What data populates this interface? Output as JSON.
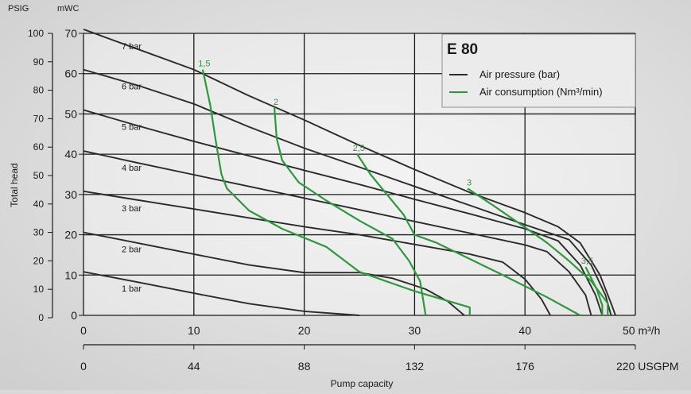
{
  "chart_data": {
    "type": "line",
    "title": "E 80",
    "legend": {
      "placement": "top-right",
      "items": [
        {
          "label": "Air pressure (bar)",
          "color": "#2b2b2b"
        },
        {
          "label": "Air consumption (Nm³/min)",
          "color": "#2a9a3a"
        }
      ]
    },
    "xlabel": "Pump capacity",
    "ylabel": "Total head",
    "x_axis_primary": {
      "unit": "m³/h",
      "range": [
        0,
        50
      ],
      "ticks": [
        "0",
        "10",
        "20",
        "30",
        "40",
        "50"
      ],
      "end_label": "50 m³/h"
    },
    "x_axis_secondary": {
      "unit": "USGPM",
      "ticks": [
        "0",
        "44",
        "88",
        "132",
        "176",
        "220"
      ],
      "end_label": "220 USGPM"
    },
    "y_axis_primary": {
      "unit": "mWC",
      "range": [
        0,
        70
      ],
      "ticks": [
        "0",
        "10",
        "20",
        "30",
        "40",
        "50",
        "60",
        "70"
      ]
    },
    "y_axis_secondary": {
      "unit": "PSIG",
      "ticks": [
        "0",
        "10",
        "20",
        "30",
        "40",
        "50",
        "60",
        "70",
        "80",
        "90",
        "100"
      ]
    },
    "grid": true,
    "series": [
      {
        "name": "1 bar",
        "kind": "pressure",
        "points": [
          [
            0,
            10.8
          ],
          [
            5,
            8.2
          ],
          [
            10,
            5.5
          ],
          [
            15,
            2.9
          ],
          [
            20,
            1.0
          ],
          [
            25,
            0
          ]
        ]
      },
      {
        "name": "2 bar",
        "kind": "pressure",
        "points": [
          [
            0,
            20.6
          ],
          [
            5,
            17.9
          ],
          [
            10,
            15.2
          ],
          [
            15,
            12.5
          ],
          [
            20,
            10.6
          ],
          [
            25,
            10.6
          ],
          [
            28,
            9.2
          ],
          [
            31,
            6.5
          ],
          [
            33,
            3.5
          ],
          [
            34.5,
            0
          ]
        ]
      },
      {
        "name": "3 bar",
        "kind": "pressure",
        "points": [
          [
            0,
            30.8
          ],
          [
            5,
            28.6
          ],
          [
            10,
            26.4
          ],
          [
            15,
            24.2
          ],
          [
            20,
            22.0
          ],
          [
            25,
            20.0
          ],
          [
            30,
            17.6
          ],
          [
            35,
            15.2
          ],
          [
            38,
            13.2
          ],
          [
            40,
            9.0
          ],
          [
            41.5,
            4.0
          ],
          [
            42.3,
            0
          ]
        ]
      },
      {
        "name": "4 bar",
        "kind": "pressure",
        "points": [
          [
            0,
            40.8
          ],
          [
            5,
            37.8
          ],
          [
            10,
            34.9
          ],
          [
            15,
            32.0
          ],
          [
            20,
            29.1
          ],
          [
            25,
            26.2
          ],
          [
            30,
            23.3
          ],
          [
            35,
            20.4
          ],
          [
            40,
            17.5
          ],
          [
            42,
            15.8
          ],
          [
            44,
            10.8
          ],
          [
            45.5,
            5.0
          ],
          [
            46,
            0
          ]
        ]
      },
      {
        "name": "5 bar",
        "kind": "pressure",
        "points": [
          [
            0,
            51.0
          ],
          [
            5,
            47.0
          ],
          [
            10,
            43.2
          ],
          [
            15,
            39.6
          ],
          [
            20,
            36.0
          ],
          [
            25,
            32.5
          ],
          [
            30,
            28.8
          ],
          [
            35,
            25.2
          ],
          [
            40,
            21.5
          ],
          [
            43,
            18.5
          ],
          [
            45,
            12.5
          ],
          [
            46.4,
            5.0
          ],
          [
            47,
            0
          ]
        ]
      },
      {
        "name": "6 bar",
        "kind": "pressure",
        "points": [
          [
            0,
            61.0
          ],
          [
            5,
            57.0
          ],
          [
            10,
            52.5
          ],
          [
            15,
            46.8
          ],
          [
            20,
            41.5
          ],
          [
            25,
            36.8
          ],
          [
            30,
            32.0
          ],
          [
            35,
            27.3
          ],
          [
            40,
            22.5
          ],
          [
            44,
            18.8
          ],
          [
            46,
            12.5
          ],
          [
            47.3,
            5.0
          ],
          [
            47.8,
            0
          ]
        ]
      },
      {
        "name": "7 bar",
        "kind": "pressure",
        "points": [
          [
            0,
            71.0
          ],
          [
            5,
            66.0
          ],
          [
            10,
            61.0
          ],
          [
            15,
            54.5
          ],
          [
            20,
            48.5
          ],
          [
            25,
            42.2
          ],
          [
            30,
            36.2
          ],
          [
            35,
            30.5
          ],
          [
            40,
            25.5
          ],
          [
            43,
            22.0
          ],
          [
            45,
            18.0
          ],
          [
            46.8,
            10.0
          ],
          [
            47.8,
            3.0
          ],
          [
            48.2,
            0
          ]
        ]
      },
      {
        "name": "1,5",
        "kind": "air",
        "points": [
          [
            10.8,
            61.0
          ],
          [
            11.5,
            52.0
          ],
          [
            12.0,
            43.0
          ],
          [
            12.5,
            35.0
          ],
          [
            13.0,
            31.5
          ],
          [
            15.0,
            26.0
          ],
          [
            18.0,
            21.5
          ],
          [
            22.0,
            17.0
          ],
          [
            25.0,
            10.8
          ],
          [
            30.0,
            6.0
          ],
          [
            35.0,
            2.0
          ],
          [
            35.0,
            0
          ]
        ]
      },
      {
        "name": "2",
        "kind": "air",
        "points": [
          [
            17.3,
            51.5
          ],
          [
            17.5,
            44.0
          ],
          [
            18.0,
            38.5
          ],
          [
            19.5,
            33.0
          ],
          [
            22.0,
            28.5
          ],
          [
            25.0,
            23.5
          ],
          [
            28.0,
            19.0
          ],
          [
            29.5,
            13.5
          ],
          [
            30.5,
            8.5
          ],
          [
            31.0,
            0
          ]
        ]
      },
      {
        "name": "2,5",
        "kind": "air",
        "points": [
          [
            24.8,
            40.0
          ],
          [
            26.0,
            35.0
          ],
          [
            27.5,
            30.0
          ],
          [
            29.0,
            25.0
          ],
          [
            30.0,
            20.0
          ],
          [
            32.0,
            18.0
          ],
          [
            35.0,
            14.0
          ],
          [
            38.0,
            10.0
          ],
          [
            42.0,
            4.5
          ],
          [
            45.0,
            0
          ]
        ]
      },
      {
        "name": "3",
        "kind": "air",
        "points": [
          [
            34.8,
            31.5
          ],
          [
            37.0,
            27.5
          ],
          [
            39.5,
            22.8
          ],
          [
            42.0,
            18.0
          ],
          [
            44.0,
            13.5
          ],
          [
            46.0,
            8.5
          ],
          [
            47.5,
            3.0
          ],
          [
            47.5,
            0
          ]
        ]
      },
      {
        "name": "3,5",
        "kind": "air",
        "points": [
          [
            45.5,
            12.0
          ],
          [
            46.5,
            6.5
          ],
          [
            47.0,
            2.5
          ],
          [
            47.0,
            0
          ]
        ]
      }
    ],
    "labels": {
      "pressure": [
        "1 bar",
        "2 bar",
        "3 bar",
        "4 bar",
        "5 bar",
        "6 bar",
        "7 bar"
      ],
      "air": [
        "1,5",
        "2",
        "2,5",
        "3",
        "3,5"
      ]
    }
  }
}
